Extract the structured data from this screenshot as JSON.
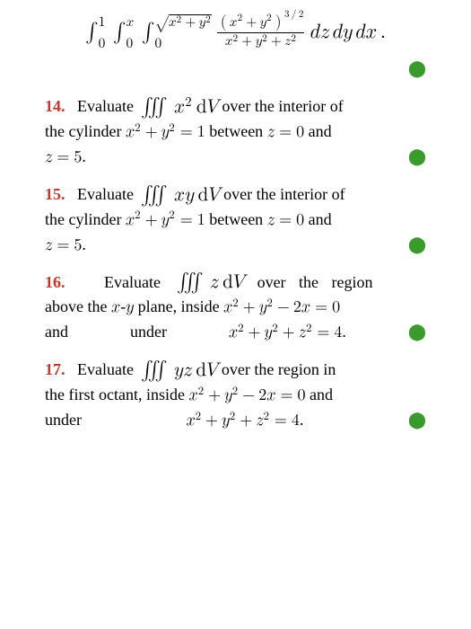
{
  "colors": {
    "accent_red": "#c0392b",
    "accent_green": "#3a9a2c",
    "text": "#000000",
    "background": "#ffffff"
  },
  "typography": {
    "font_family": "Georgia, Times New Roman, serif",
    "body_fontsize_pt": 13,
    "math_display_fontsize_pt": 17
  },
  "dot": "⬤",
  "top_expression": {
    "type": "triple_integral_display",
    "outer_limits": [
      "0",
      "1"
    ],
    "mid_limits": [
      "0",
      "x"
    ],
    "inner_limits": [
      "0",
      "√(x²+y²)"
    ],
    "integrand_tex": "(x²+y²)^{3/2} / (x²+y²+z²)",
    "differentials": "dz dy dx."
  },
  "problems": [
    {
      "n": "14.",
      "lead": "Evaluate",
      "integral_tex": "∭ x² dV",
      "after_integral": "over the interior of",
      "line2_pre": "the cylinder",
      "line2_eq": "x² + y² = 1",
      "line2_post": "between",
      "line2_eq2": "z = 0",
      "line2_tail": "and",
      "line3": "z = 5."
    },
    {
      "n": "15.",
      "lead": "Evaluate",
      "integral_tex": "∭ xy dV",
      "after_integral": "over the interior of",
      "line2_pre": "the cylinder",
      "line2_eq": "x² + y² = 1",
      "line2_post": "between",
      "line2_eq2": "z = 0",
      "line2_tail": "and",
      "line3": "z = 5."
    },
    {
      "n": "16.",
      "lead": "Evaluate",
      "integral_tex": "∭ z dV",
      "after_integral": "over the region",
      "line2_pre": "above the",
      "line2_mid": "x-y",
      "line2_post": "plane, inside",
      "line2_eq": "x² + y² − 2x = 0",
      "line3_pre": "and under",
      "line3_eq": "x² + y² + z² = 4."
    },
    {
      "n": "17.",
      "lead": "Evaluate",
      "integral_tex": "∭ yz dV",
      "after_integral": "over the region in",
      "line2_pre": "the first octant, inside",
      "line2_eq": "x² + y² − 2x = 0",
      "line2_tail": "and",
      "line3_pre": "under",
      "line3_eq": "x² + y² + z² = 4."
    }
  ]
}
